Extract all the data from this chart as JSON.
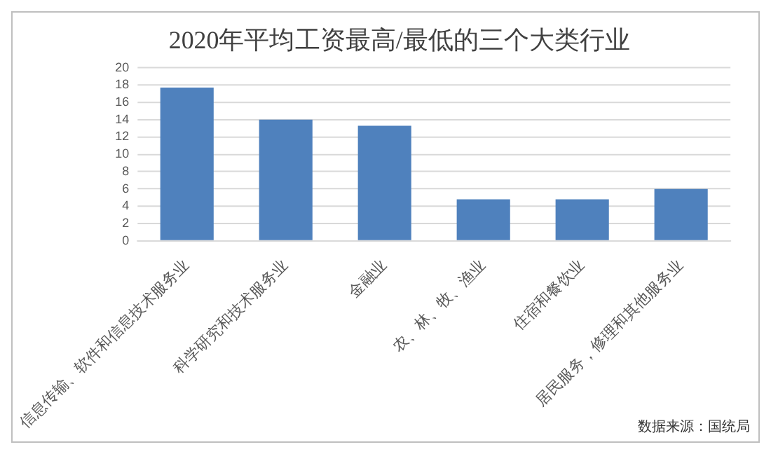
{
  "chart_data": {
    "type": "bar",
    "title": "2020年平均工资最高/最低的三个大类行业",
    "categories": [
      "信息传输、软件和信息技术服务业",
      "科学研究和技术服务业",
      "金融业",
      "农、林、牧、渔业",
      "住宿和餐饮业",
      "居民服务，修理和其他服务业"
    ],
    "values": [
      17.7,
      14.0,
      13.3,
      4.8,
      4.8,
      6.0
    ],
    "color": "#4f81bd",
    "ylim": [
      0,
      20
    ],
    "yticks": [
      0,
      2,
      4,
      6,
      8,
      10,
      12,
      14,
      16,
      18,
      20
    ],
    "grid": "y",
    "annotations": [
      "数据来源：国统局"
    ]
  }
}
